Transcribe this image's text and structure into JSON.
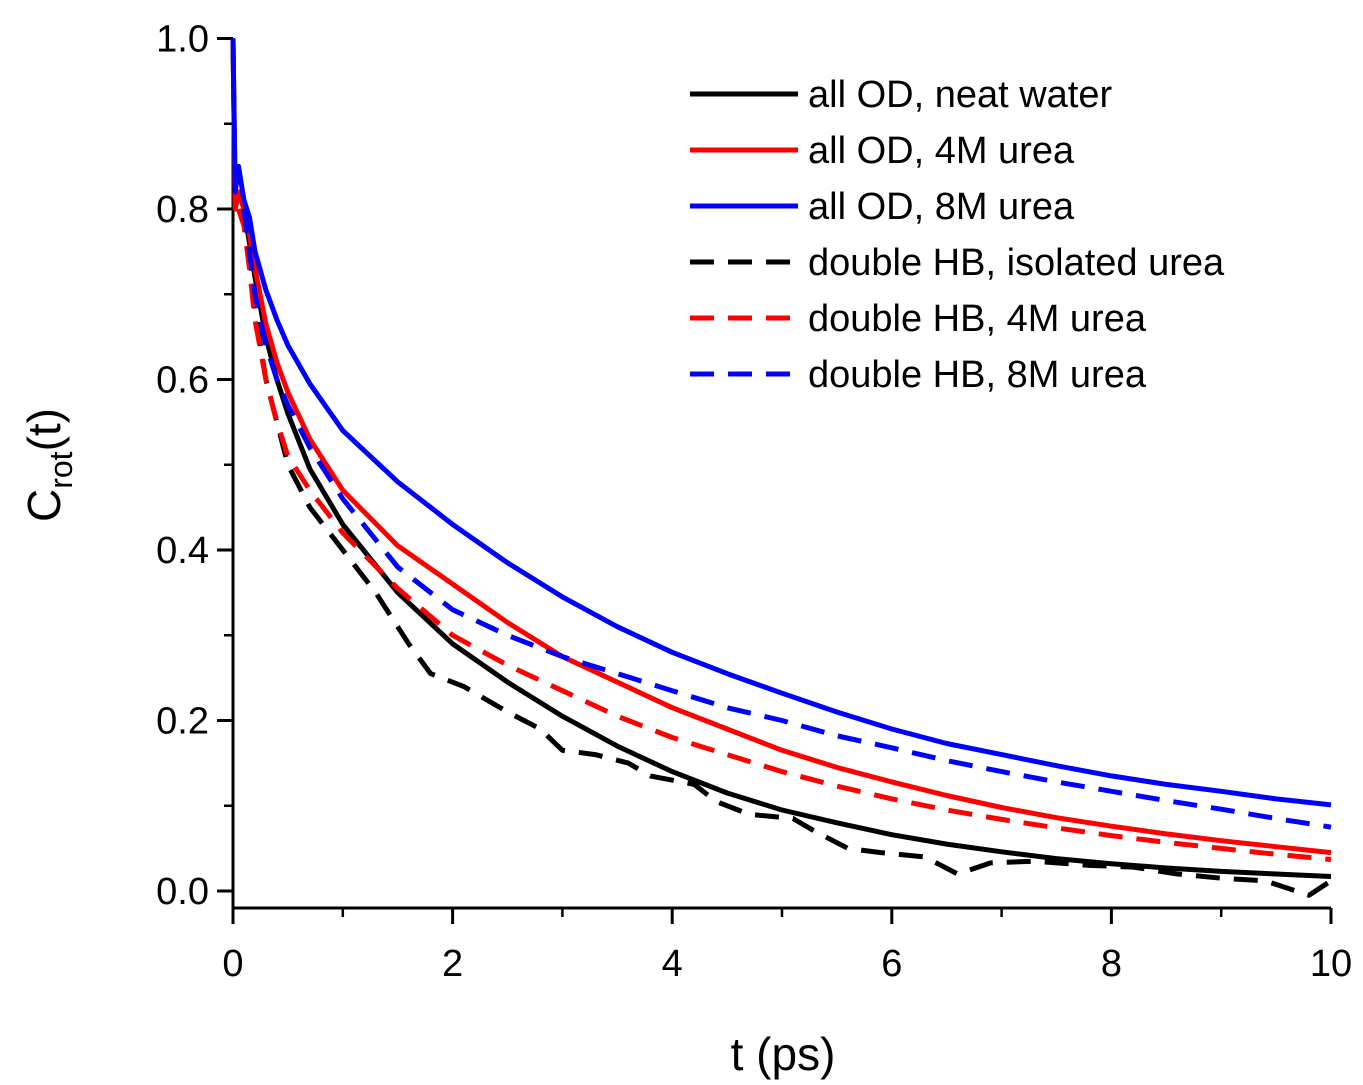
{
  "chart_data": {
    "type": "line",
    "xlabel": "t (ps)",
    "ylabel": {
      "main": "C",
      "subscript": "rot",
      "suffix": "(t)"
    },
    "xlim": [
      0,
      10
    ],
    "ylim": [
      -0.02,
      1.0
    ],
    "x_ticks": [
      0,
      2,
      4,
      6,
      8,
      10
    ],
    "x_tick_labels": [
      "0",
      "2",
      "4",
      "6",
      "8",
      "10"
    ],
    "y_ticks": [
      0.0,
      0.2,
      0.4,
      0.6,
      0.8,
      1.0
    ],
    "y_tick_labels": [
      "0.0",
      "0.2",
      "0.4",
      "0.6",
      "0.8",
      "1.0"
    ],
    "grid": false,
    "legend_position": "top-right",
    "series": [
      {
        "name": "all OD, neat water",
        "color": "#000000",
        "dash": "solid",
        "points": [
          [
            0,
            1.0
          ],
          [
            0.02,
            0.8
          ],
          [
            0.05,
            0.82
          ],
          [
            0.1,
            0.8
          ],
          [
            0.15,
            0.76
          ],
          [
            0.2,
            0.72
          ],
          [
            0.3,
            0.65
          ],
          [
            0.4,
            0.6
          ],
          [
            0.5,
            0.56
          ],
          [
            0.7,
            0.495
          ],
          [
            1,
            0.43
          ],
          [
            1.5,
            0.35
          ],
          [
            2,
            0.29
          ],
          [
            2.5,
            0.245
          ],
          [
            3,
            0.205
          ],
          [
            3.5,
            0.17
          ],
          [
            4,
            0.14
          ],
          [
            4.5,
            0.115
          ],
          [
            5,
            0.095
          ],
          [
            5.5,
            0.08
          ],
          [
            6,
            0.066
          ],
          [
            6.5,
            0.055
          ],
          [
            7,
            0.046
          ],
          [
            7.5,
            0.038
          ],
          [
            8,
            0.032
          ],
          [
            8.5,
            0.027
          ],
          [
            9,
            0.023
          ],
          [
            9.5,
            0.02
          ],
          [
            10,
            0.017
          ]
        ]
      },
      {
        "name": "all OD, 4M urea",
        "color": "#ff0000",
        "dash": "solid",
        "points": [
          [
            0,
            1.0
          ],
          [
            0.02,
            0.8
          ],
          [
            0.05,
            0.82
          ],
          [
            0.1,
            0.8
          ],
          [
            0.15,
            0.77
          ],
          [
            0.2,
            0.73
          ],
          [
            0.3,
            0.665
          ],
          [
            0.4,
            0.62
          ],
          [
            0.5,
            0.585
          ],
          [
            0.7,
            0.53
          ],
          [
            1,
            0.47
          ],
          [
            1.5,
            0.405
          ],
          [
            2,
            0.36
          ],
          [
            2.5,
            0.315
          ],
          [
            3,
            0.275
          ],
          [
            3.5,
            0.245
          ],
          [
            4,
            0.215
          ],
          [
            4.5,
            0.19
          ],
          [
            5,
            0.165
          ],
          [
            5.5,
            0.145
          ],
          [
            6,
            0.128
          ],
          [
            6.5,
            0.112
          ],
          [
            7,
            0.098
          ],
          [
            7.5,
            0.086
          ],
          [
            8,
            0.076
          ],
          [
            8.5,
            0.067
          ],
          [
            9,
            0.059
          ],
          [
            9.5,
            0.052
          ],
          [
            10,
            0.045
          ]
        ]
      },
      {
        "name": "all OD, 8M urea",
        "color": "#0000ff",
        "dash": "solid",
        "points": [
          [
            0,
            1.0
          ],
          [
            0.02,
            0.82
          ],
          [
            0.05,
            0.85
          ],
          [
            0.1,
            0.81
          ],
          [
            0.15,
            0.79
          ],
          [
            0.2,
            0.75
          ],
          [
            0.3,
            0.705
          ],
          [
            0.4,
            0.67
          ],
          [
            0.5,
            0.64
          ],
          [
            0.7,
            0.595
          ],
          [
            1,
            0.54
          ],
          [
            1.5,
            0.48
          ],
          [
            2,
            0.43
          ],
          [
            2.5,
            0.385
          ],
          [
            3,
            0.345
          ],
          [
            3.5,
            0.31
          ],
          [
            4,
            0.28
          ],
          [
            4.5,
            0.255
          ],
          [
            5,
            0.232
          ],
          [
            5.5,
            0.21
          ],
          [
            6,
            0.19
          ],
          [
            6.5,
            0.173
          ],
          [
            7,
            0.16
          ],
          [
            7.5,
            0.147
          ],
          [
            8,
            0.135
          ],
          [
            8.5,
            0.125
          ],
          [
            9,
            0.117
          ],
          [
            9.5,
            0.108
          ],
          [
            10,
            0.101
          ]
        ]
      },
      {
        "name": "double HB, isolated urea",
        "color": "#000000",
        "dash": "dashed",
        "points": [
          [
            0.1,
            0.8
          ],
          [
            0.15,
            0.75
          ],
          [
            0.2,
            0.68
          ],
          [
            0.3,
            0.6
          ],
          [
            0.4,
            0.55
          ],
          [
            0.5,
            0.5
          ],
          [
            0.7,
            0.45
          ],
          [
            1,
            0.4
          ],
          [
            1.3,
            0.35
          ],
          [
            1.6,
            0.29
          ],
          [
            1.8,
            0.255
          ],
          [
            2.1,
            0.24
          ],
          [
            2.5,
            0.21
          ],
          [
            2.8,
            0.19
          ],
          [
            3,
            0.165
          ],
          [
            3.3,
            0.16
          ],
          [
            3.6,
            0.15
          ],
          [
            3.8,
            0.135
          ],
          [
            4.2,
            0.125
          ],
          [
            4.4,
            0.105
          ],
          [
            4.7,
            0.09
          ],
          [
            5.1,
            0.085
          ],
          [
            5.3,
            0.07
          ],
          [
            5.6,
            0.05
          ],
          [
            5.9,
            0.045
          ],
          [
            6.3,
            0.04
          ],
          [
            6.6,
            0.02
          ],
          [
            6.9,
            0.033
          ],
          [
            7.3,
            0.035
          ],
          [
            7.8,
            0.03
          ],
          [
            8.2,
            0.028
          ],
          [
            8.6,
            0.02
          ],
          [
            9,
            0.015
          ],
          [
            9.4,
            0.012
          ],
          [
            9.8,
            -0.005
          ],
          [
            10,
            0.012
          ]
        ]
      },
      {
        "name": "double HB, 4M urea",
        "color": "#ff0000",
        "dash": "dashed",
        "points": [
          [
            0.05,
            0.8
          ],
          [
            0.1,
            0.78
          ],
          [
            0.15,
            0.73
          ],
          [
            0.2,
            0.67
          ],
          [
            0.3,
            0.6
          ],
          [
            0.4,
            0.55
          ],
          [
            0.5,
            0.51
          ],
          [
            0.7,
            0.47
          ],
          [
            1,
            0.42
          ],
          [
            1.5,
            0.355
          ],
          [
            2,
            0.3
          ],
          [
            2.5,
            0.265
          ],
          [
            3,
            0.235
          ],
          [
            3.5,
            0.205
          ],
          [
            4,
            0.18
          ],
          [
            4.5,
            0.16
          ],
          [
            5,
            0.14
          ],
          [
            5.5,
            0.123
          ],
          [
            6,
            0.108
          ],
          [
            6.5,
            0.095
          ],
          [
            7,
            0.084
          ],
          [
            7.5,
            0.074
          ],
          [
            8,
            0.065
          ],
          [
            8.5,
            0.057
          ],
          [
            9,
            0.05
          ],
          [
            9.5,
            0.043
          ],
          [
            10,
            0.037
          ]
        ]
      },
      {
        "name": "double HB, 8M urea",
        "color": "#0000ff",
        "dash": "dashed",
        "points": [
          [
            0.1,
            0.8
          ],
          [
            0.15,
            0.75
          ],
          [
            0.2,
            0.7
          ],
          [
            0.3,
            0.64
          ],
          [
            0.4,
            0.6
          ],
          [
            0.5,
            0.57
          ],
          [
            0.7,
            0.52
          ],
          [
            1,
            0.46
          ],
          [
            1.5,
            0.38
          ],
          [
            2,
            0.33
          ],
          [
            2.5,
            0.3
          ],
          [
            3,
            0.275
          ],
          [
            3.5,
            0.255
          ],
          [
            4,
            0.235
          ],
          [
            4.5,
            0.215
          ],
          [
            5,
            0.2
          ],
          [
            5.5,
            0.182
          ],
          [
            6,
            0.168
          ],
          [
            6.5,
            0.153
          ],
          [
            7,
            0.14
          ],
          [
            7.5,
            0.128
          ],
          [
            8,
            0.117
          ],
          [
            8.5,
            0.106
          ],
          [
            9,
            0.096
          ],
          [
            9.5,
            0.085
          ],
          [
            10,
            0.075
          ]
        ]
      }
    ]
  }
}
